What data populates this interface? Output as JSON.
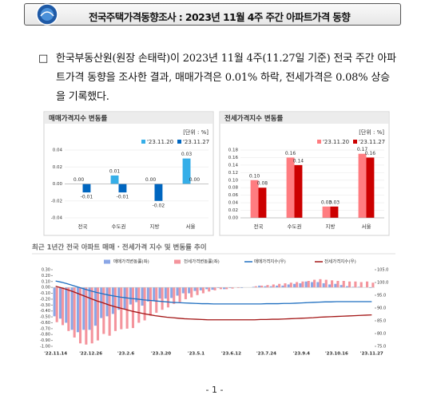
{
  "header": {
    "title": "전국주택가격동향조사 : 2023년 11월 4주 주간 아파트가격 동향"
  },
  "body": {
    "marker": "□",
    "text": "한국부동산원(원장 손태락)이 2023년 11월 4주(11.27일 기준) 전국 주간 아파트가격 동향을 조사한 결과, 매매가격은 0.01% 하락, 전세가격은 0.08% 상승을 기록했다."
  },
  "chart_data": [
    {
      "type": "bar",
      "title": "매매가격지수 변동률",
      "unit": "[단위 : %]",
      "categories": [
        "전국",
        "수도권",
        "지방",
        "서울"
      ],
      "series": [
        {
          "name": "'23.11.20",
          "color": "#35aee8",
          "values": [
            0.0,
            0.01,
            0.0,
            0.03
          ],
          "value_labels": [
            "0.00",
            "0.01",
            "0.00",
            "0.03"
          ]
        },
        {
          "name": "'23.11.27",
          "color": "#0066c0",
          "values": [
            -0.01,
            -0.01,
            -0.02,
            0.0
          ],
          "value_labels": [
            "-0.01",
            "-0.01",
            "-0.02",
            "0.00"
          ]
        }
      ],
      "ylim": [
        -0.04,
        0.04
      ],
      "yticks": [
        0.04,
        0.02,
        {
          "value": 0,
          "label": "0.00"
        },
        -0.02,
        -0.04
      ]
    },
    {
      "type": "bar",
      "title": "전세가격지수 변동률",
      "unit": "[단위 : %]",
      "categories": [
        "전국",
        "수도권",
        "지방",
        "서울"
      ],
      "series": [
        {
          "name": "'23.11.20",
          "color": "#ff7c80",
          "values": [
            0.1,
            0.16,
            0.03,
            0.17
          ],
          "value_labels": [
            "0.10",
            "0.16",
            "0.03",
            "0.17"
          ]
        },
        {
          "name": "'23.11.27",
          "color": "#cc0000",
          "values": [
            0.08,
            0.14,
            0.03,
            0.16
          ],
          "value_labels": [
            "0.08",
            "0.14",
            "0.03",
            "0.16"
          ]
        }
      ],
      "ylim": [
        0,
        0.18
      ],
      "yticks": [
        {
          "value": 0,
          "label": "0.00"
        },
        0.02,
        0.04,
        0.06,
        0.08,
        {
          "value": 0.1,
          "label": "0.10"
        },
        0.12,
        0.14,
        0.16,
        0.18
      ]
    },
    {
      "type": "combo",
      "title": "최근 1년간 전국 아파트 매매 · 전세가격 지수 및 변동률 추이",
      "categories": [
        "'22.11.14",
        null,
        null,
        null,
        null,
        null,
        "'22.12.26",
        null,
        null,
        null,
        null,
        null,
        "'23.2.6",
        null,
        null,
        null,
        null,
        null,
        "'23.3.20",
        null,
        null,
        null,
        null,
        null,
        "'23.5.1",
        null,
        null,
        null,
        null,
        null,
        "'23.6.12",
        null,
        null,
        null,
        null,
        null,
        "'23.7.24",
        null,
        null,
        null,
        null,
        null,
        "'23.9.4",
        null,
        null,
        null,
        null,
        null,
        "'23.10.16",
        null,
        null,
        null,
        null,
        null,
        "'23.11.27"
      ],
      "series": [
        {
          "name": "매매가격변동률(좌)",
          "mark": "bar",
          "color": "#8aa6e6",
          "values": [
            -0.49,
            -0.53,
            -0.6,
            -0.72,
            -0.76,
            -0.72,
            -0.72,
            -0.65,
            -0.52,
            -0.49,
            -0.45,
            -0.38,
            -0.37,
            -0.29,
            -0.25,
            -0.31,
            -0.24,
            -0.23,
            -0.19,
            -0.19,
            -0.18,
            -0.14,
            -0.1,
            -0.1,
            -0.06,
            -0.05,
            -0.03,
            -0.04,
            -0.01,
            -0.03,
            -0.01,
            0.0,
            -0.01,
            0.0,
            0.01,
            0.03,
            0.02,
            0.02,
            0.03,
            0.03,
            0.05,
            0.06,
            0.07,
            0.1,
            0.09,
            0.09,
            0.07,
            0.05,
            0.06,
            0.04,
            0.02,
            0.01,
            0.01,
            0.0,
            -0.01
          ]
        },
        {
          "name": "전세가격변동률(좌)",
          "mark": "bar",
          "color": "#f4949c",
          "values": [
            -0.59,
            -0.64,
            -0.74,
            -0.85,
            -0.95,
            -0.97,
            -0.95,
            -0.9,
            -0.79,
            -0.82,
            -0.74,
            -0.71,
            -0.7,
            -0.69,
            -0.6,
            -0.56,
            -0.48,
            -0.43,
            -0.38,
            -0.34,
            -0.28,
            -0.25,
            -0.2,
            -0.17,
            -0.13,
            -0.1,
            -0.07,
            -0.05,
            -0.03,
            -0.03,
            -0.02,
            -0.01,
            0.0,
            0.0,
            0.02,
            0.03,
            0.04,
            0.05,
            0.06,
            0.07,
            0.08,
            0.09,
            0.1,
            0.11,
            0.13,
            0.14,
            0.13,
            0.12,
            0.11,
            0.11,
            0.1,
            0.1,
            0.09,
            0.1,
            0.08
          ]
        },
        {
          "name": "매매가격지수(우)",
          "mark": "line",
          "axis": "y2",
          "color": "#1f6fc0",
          "values": [
            100.6,
            100.1,
            99.5,
            98.8,
            98.1,
            97.4,
            96.7,
            96.1,
            95.6,
            95.1,
            94.7,
            94.3,
            94.0,
            93.7,
            93.5,
            93.2,
            93.0,
            92.8,
            92.6,
            92.4,
            92.2,
            92.1,
            92.0,
            91.9,
            91.8,
            91.7,
            91.7,
            91.6,
            91.6,
            91.6,
            91.6,
            91.6,
            91.6,
            91.6,
            91.6,
            91.6,
            91.7,
            91.7,
            91.7,
            91.8,
            91.8,
            91.9,
            92.0,
            92.1,
            92.2,
            92.3,
            92.4,
            92.4,
            92.5,
            92.5,
            92.5,
            92.5,
            92.5,
            92.5,
            92.5
          ]
        },
        {
          "name": "전세가격지수(우)",
          "mark": "line",
          "axis": "y2",
          "color": "#a31515",
          "values": [
            98.5,
            97.9,
            97.2,
            96.4,
            95.5,
            94.6,
            93.7,
            92.8,
            92.1,
            91.3,
            90.6,
            90.0,
            89.4,
            88.8,
            88.3,
            87.8,
            87.4,
            87.0,
            86.7,
            86.4,
            86.2,
            86.0,
            85.8,
            85.7,
            85.6,
            85.5,
            85.4,
            85.4,
            85.4,
            85.4,
            85.4,
            85.4,
            85.4,
            85.4,
            85.4,
            85.5,
            85.5,
            85.6,
            85.6,
            85.7,
            85.8,
            85.9,
            86.0,
            86.1,
            86.2,
            86.4,
            86.5,
            86.6,
            86.7,
            86.8,
            86.9,
            87.0,
            87.1,
            87.2,
            87.3
          ]
        }
      ],
      "ylim": [
        -1.0,
        0.3
      ],
      "yticks": [
        {
          "value": 0.3,
          "label": "0.30"
        },
        {
          "value": 0.2,
          "label": "0.20"
        },
        {
          "value": 0.1,
          "label": "0.10"
        },
        {
          "value": 0,
          "label": "0.00"
        },
        {
          "value": -0.1,
          "label": "-0.10"
        },
        {
          "value": -0.2,
          "label": "-0.20"
        },
        {
          "value": -0.3,
          "label": "-0.30"
        },
        {
          "value": -0.4,
          "label": "-0.40"
        },
        {
          "value": -0.5,
          "label": "-0.50"
        },
        {
          "value": -0.6,
          "label": "-0.60"
        },
        {
          "value": -0.7,
          "label": "-0.70"
        },
        {
          "value": -0.8,
          "label": "-0.80"
        },
        {
          "value": -0.9,
          "label": "-0.90"
        },
        {
          "value": -1.0,
          "label": "-1.00"
        }
      ],
      "y2lim": [
        75,
        105
      ],
      "y2ticks": [
        {
          "value": 105,
          "label": "105.0"
        },
        {
          "value": 100,
          "label": "100.0"
        },
        {
          "value": 95,
          "label": "95.0"
        },
        {
          "value": 90,
          "label": "90.0"
        },
        {
          "value": 85,
          "label": "85.0"
        },
        {
          "value": 80,
          "label": "80.0"
        },
        {
          "value": 75,
          "label": "75.0"
        }
      ]
    }
  ],
  "footer": {
    "page": "- 1 -"
  }
}
